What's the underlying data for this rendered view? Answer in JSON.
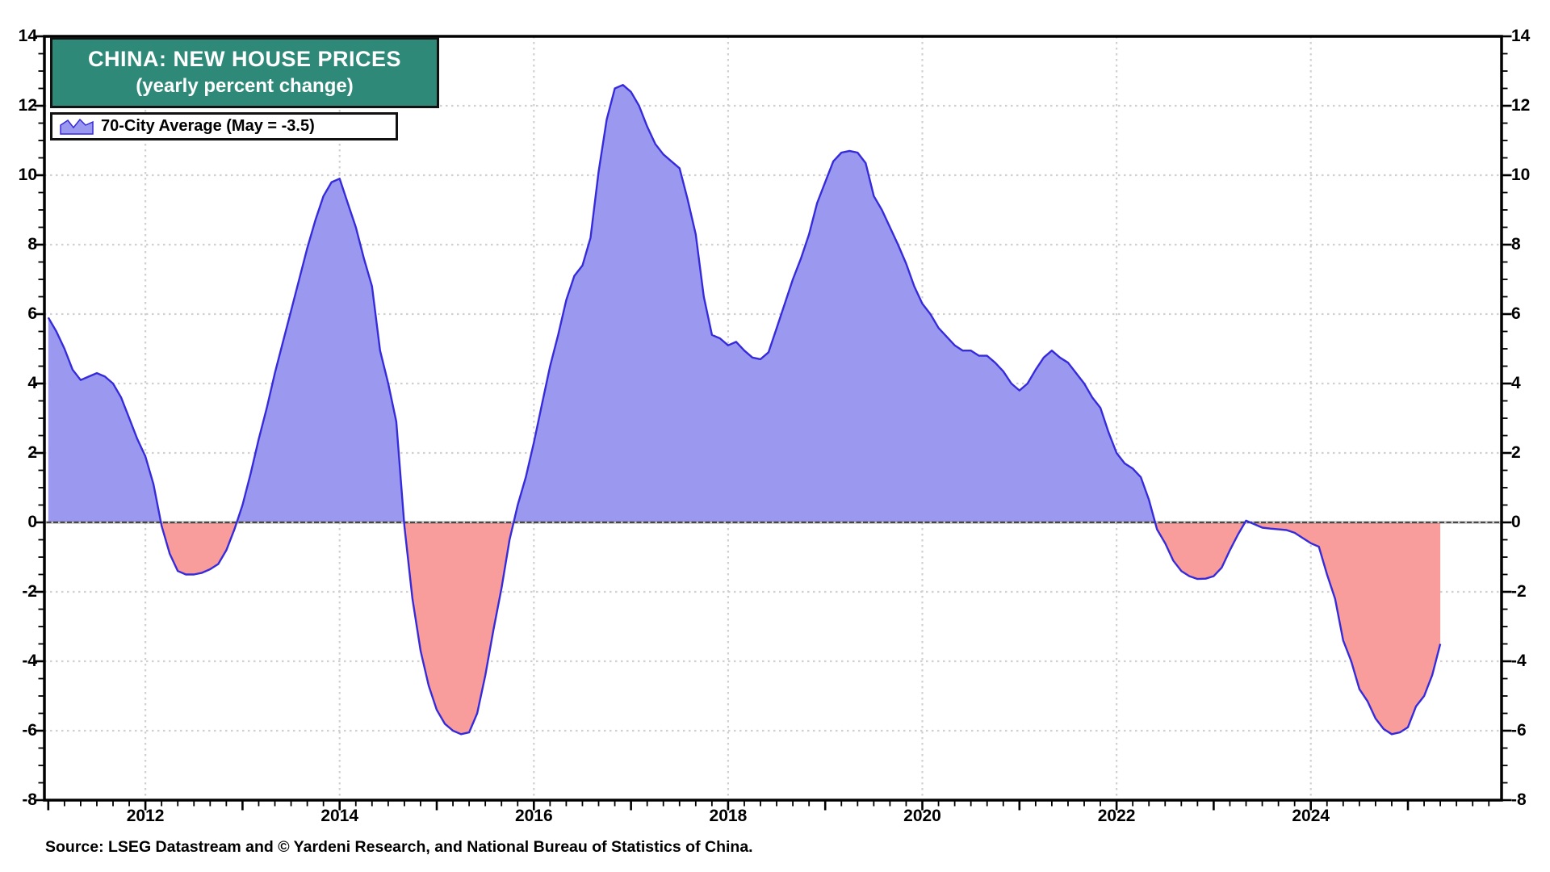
{
  "title": {
    "line1": "CHINA: NEW HOUSE PRICES",
    "line2": "(yearly percent change)"
  },
  "legend": {
    "label": "70-City Average (May = -3.5)"
  },
  "source": "Source: LSEG Datastream and © Yardeni Research, and National Bureau of Statistics of China.",
  "colors": {
    "title_box_bg": "#2E8978",
    "title_text": "#ffffff",
    "positive_fill": "#9b99ef",
    "negative_fill": "#f99c9c",
    "line": "#352bdb",
    "gridline": "#d0d0d0",
    "zero_line": "#474747",
    "frame": "#000000"
  },
  "chart_data": {
    "type": "area",
    "title": "CHINA: NEW HOUSE PRICES (yearly percent change)",
    "series_name": "70-City Average",
    "last_point_label": "May = -3.5",
    "unit": "percent",
    "ylim": [
      -8,
      14
    ],
    "xlim": [
      2010.96,
      2026.0
    ],
    "y_ticks": [
      14,
      12,
      10,
      8,
      6,
      4,
      2,
      0,
      -2,
      -4,
      -6,
      -8
    ],
    "x_ticks": [
      2012,
      2014,
      2016,
      2018,
      2020,
      2022,
      2024
    ],
    "grid": "dotted gray horizontal lines at even values, dotted vertical lines at even years, solid dark zero line",
    "legend_position": "top-left",
    "points": [
      [
        "2011-01",
        5.9
      ],
      [
        "2011-02",
        5.5
      ],
      [
        "2011-03",
        5.0
      ],
      [
        "2011-04",
        4.4
      ],
      [
        "2011-05",
        4.1
      ],
      [
        "2011-06",
        4.2
      ],
      [
        "2011-07",
        4.3
      ],
      [
        "2011-08",
        4.2
      ],
      [
        "2011-09",
        4.0
      ],
      [
        "2011-10",
        3.6
      ],
      [
        "2011-11",
        3.0
      ],
      [
        "2011-12",
        2.4
      ],
      [
        "2012-01",
        1.9
      ],
      [
        "2012-02",
        1.1
      ],
      [
        "2012-03",
        -0.1
      ],
      [
        "2012-04",
        -0.9
      ],
      [
        "2012-05",
        -1.4
      ],
      [
        "2012-06",
        -1.5
      ],
      [
        "2012-07",
        -1.5
      ],
      [
        "2012-08",
        -1.45
      ],
      [
        "2012-09",
        -1.35
      ],
      [
        "2012-10",
        -1.2
      ],
      [
        "2012-11",
        -0.8
      ],
      [
        "2012-12",
        -0.2
      ],
      [
        "2013-01",
        0.5
      ],
      [
        "2013-02",
        1.4
      ],
      [
        "2013-03",
        2.4
      ],
      [
        "2013-04",
        3.3
      ],
      [
        "2013-05",
        4.3
      ],
      [
        "2013-06",
        5.2
      ],
      [
        "2013-07",
        6.1
      ],
      [
        "2013-08",
        7.0
      ],
      [
        "2013-09",
        7.9
      ],
      [
        "2013-10",
        8.7
      ],
      [
        "2013-11",
        9.4
      ],
      [
        "2013-12",
        9.8
      ],
      [
        "2014-01",
        9.9
      ],
      [
        "2014-02",
        9.2
      ],
      [
        "2014-03",
        8.5
      ],
      [
        "2014-04",
        7.6
      ],
      [
        "2014-05",
        6.8
      ],
      [
        "2014-06",
        4.95
      ],
      [
        "2014-07",
        4.0
      ],
      [
        "2014-08",
        2.9
      ],
      [
        "2014-09",
        -0.1
      ],
      [
        "2014-10",
        -2.2
      ],
      [
        "2014-11",
        -3.7
      ],
      [
        "2014-12",
        -4.7
      ],
      [
        "2015-01",
        -5.4
      ],
      [
        "2015-02",
        -5.8
      ],
      [
        "2015-03",
        -6.0
      ],
      [
        "2015-04",
        -6.1
      ],
      [
        "2015-05",
        -6.05
      ],
      [
        "2015-06",
        -5.5
      ],
      [
        "2015-07",
        -4.4
      ],
      [
        "2015-08",
        -3.1
      ],
      [
        "2015-09",
        -1.9
      ],
      [
        "2015-10",
        -0.5
      ],
      [
        "2015-11",
        0.5
      ],
      [
        "2015-12",
        1.3
      ],
      [
        "2016-01",
        2.3
      ],
      [
        "2016-02",
        3.4
      ],
      [
        "2016-03",
        4.5
      ],
      [
        "2016-04",
        5.4
      ],
      [
        "2016-05",
        6.4
      ],
      [
        "2016-06",
        7.1
      ],
      [
        "2016-07",
        7.4
      ],
      [
        "2016-08",
        8.2
      ],
      [
        "2016-09",
        10.1
      ],
      [
        "2016-10",
        11.6
      ],
      [
        "2016-11",
        12.5
      ],
      [
        "2016-12",
        12.6
      ],
      [
        "2017-01",
        12.4
      ],
      [
        "2017-02",
        12.0
      ],
      [
        "2017-03",
        11.4
      ],
      [
        "2017-04",
        10.9
      ],
      [
        "2017-05",
        10.6
      ],
      [
        "2017-06",
        10.4
      ],
      [
        "2017-07",
        10.2
      ],
      [
        "2017-08",
        9.3
      ],
      [
        "2017-09",
        8.3
      ],
      [
        "2017-10",
        6.5
      ],
      [
        "2017-11",
        5.4
      ],
      [
        "2017-12",
        5.3
      ],
      [
        "2018-01",
        5.1
      ],
      [
        "2018-02",
        5.2
      ],
      [
        "2018-03",
        4.95
      ],
      [
        "2018-04",
        4.75
      ],
      [
        "2018-05",
        4.7
      ],
      [
        "2018-06",
        4.9
      ],
      [
        "2018-07",
        5.6
      ],
      [
        "2018-08",
        6.3
      ],
      [
        "2018-09",
        7.0
      ],
      [
        "2018-10",
        7.6
      ],
      [
        "2018-11",
        8.3
      ],
      [
        "2018-12",
        9.2
      ],
      [
        "2019-01",
        9.8
      ],
      [
        "2019-02",
        10.4
      ],
      [
        "2019-03",
        10.65
      ],
      [
        "2019-04",
        10.7
      ],
      [
        "2019-05",
        10.65
      ],
      [
        "2019-06",
        10.35
      ],
      [
        "2019-07",
        9.4
      ],
      [
        "2019-08",
        9.0
      ],
      [
        "2019-09",
        8.5
      ],
      [
        "2019-10",
        8.0
      ],
      [
        "2019-11",
        7.45
      ],
      [
        "2019-12",
        6.8
      ],
      [
        "2020-01",
        6.3
      ],
      [
        "2020-02",
        6.0
      ],
      [
        "2020-03",
        5.6
      ],
      [
        "2020-04",
        5.35
      ],
      [
        "2020-05",
        5.1
      ],
      [
        "2020-06",
        4.95
      ],
      [
        "2020-07",
        4.95
      ],
      [
        "2020-08",
        4.8
      ],
      [
        "2020-09",
        4.8
      ],
      [
        "2020-10",
        4.6
      ],
      [
        "2020-11",
        4.35
      ],
      [
        "2020-12",
        4.0
      ],
      [
        "2021-01",
        3.8
      ],
      [
        "2021-02",
        4.0
      ],
      [
        "2021-03",
        4.4
      ],
      [
        "2021-04",
        4.75
      ],
      [
        "2021-05",
        4.95
      ],
      [
        "2021-06",
        4.75
      ],
      [
        "2021-07",
        4.6
      ],
      [
        "2021-08",
        4.3
      ],
      [
        "2021-09",
        4.0
      ],
      [
        "2021-10",
        3.6
      ],
      [
        "2021-11",
        3.3
      ],
      [
        "2021-12",
        2.6
      ],
      [
        "2022-01",
        2.0
      ],
      [
        "2022-02",
        1.7
      ],
      [
        "2022-03",
        1.55
      ],
      [
        "2022-04",
        1.3
      ],
      [
        "2022-05",
        0.65
      ],
      [
        "2022-06",
        -0.2
      ],
      [
        "2022-07",
        -0.6
      ],
      [
        "2022-08",
        -1.1
      ],
      [
        "2022-09",
        -1.4
      ],
      [
        "2022-10",
        -1.55
      ],
      [
        "2022-11",
        -1.63
      ],
      [
        "2022-12",
        -1.62
      ],
      [
        "2023-01",
        -1.55
      ],
      [
        "2023-02",
        -1.3
      ],
      [
        "2023-03",
        -0.8
      ],
      [
        "2023-04",
        -0.35
      ],
      [
        "2023-05",
        0.05
      ],
      [
        "2023-06",
        -0.05
      ],
      [
        "2023-07",
        -0.15
      ],
      [
        "2023-08",
        -0.18
      ],
      [
        "2023-09",
        -0.2
      ],
      [
        "2023-10",
        -0.22
      ],
      [
        "2023-11",
        -0.3
      ],
      [
        "2023-12",
        -0.45
      ],
      [
        "2024-01",
        -0.6
      ],
      [
        "2024-02",
        -0.7
      ],
      [
        "2024-03",
        -1.5
      ],
      [
        "2024-04",
        -2.2
      ],
      [
        "2024-05",
        -3.4
      ],
      [
        "2024-06",
        -4.0
      ],
      [
        "2024-07",
        -4.8
      ],
      [
        "2024-08",
        -5.15
      ],
      [
        "2024-09",
        -5.65
      ],
      [
        "2024-10",
        -5.95
      ],
      [
        "2024-11",
        -6.1
      ],
      [
        "2024-12",
        -6.05
      ],
      [
        "2025-01",
        -5.9
      ],
      [
        "2025-02",
        -5.3
      ],
      [
        "2025-03",
        -5.0
      ],
      [
        "2025-04",
        -4.4
      ],
      [
        "2025-05",
        -3.5
      ]
    ]
  }
}
